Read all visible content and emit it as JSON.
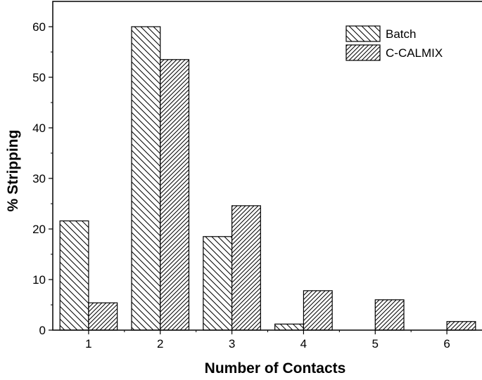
{
  "chart_data": {
    "type": "bar",
    "categories": [
      "1",
      "2",
      "3",
      "4",
      "5",
      "6"
    ],
    "series": [
      {
        "name": "Batch",
        "values": [
          21.6,
          60.0,
          18.5,
          1.2,
          0,
          0
        ],
        "pattern": "backslash-hatch"
      },
      {
        "name": "C-CALMIX",
        "values": [
          5.4,
          53.5,
          24.6,
          7.8,
          6.0,
          1.7
        ],
        "pattern": "forwardslash-hatch"
      }
    ],
    "title": "",
    "xlabel": "Number of Contacts",
    "ylabel": "% Stripping",
    "ylim": [
      0,
      65
    ],
    "yticks": [
      "0",
      "10",
      "20",
      "30",
      "40",
      "50",
      "60"
    ],
    "grid": false,
    "legend_position": "top-right"
  }
}
